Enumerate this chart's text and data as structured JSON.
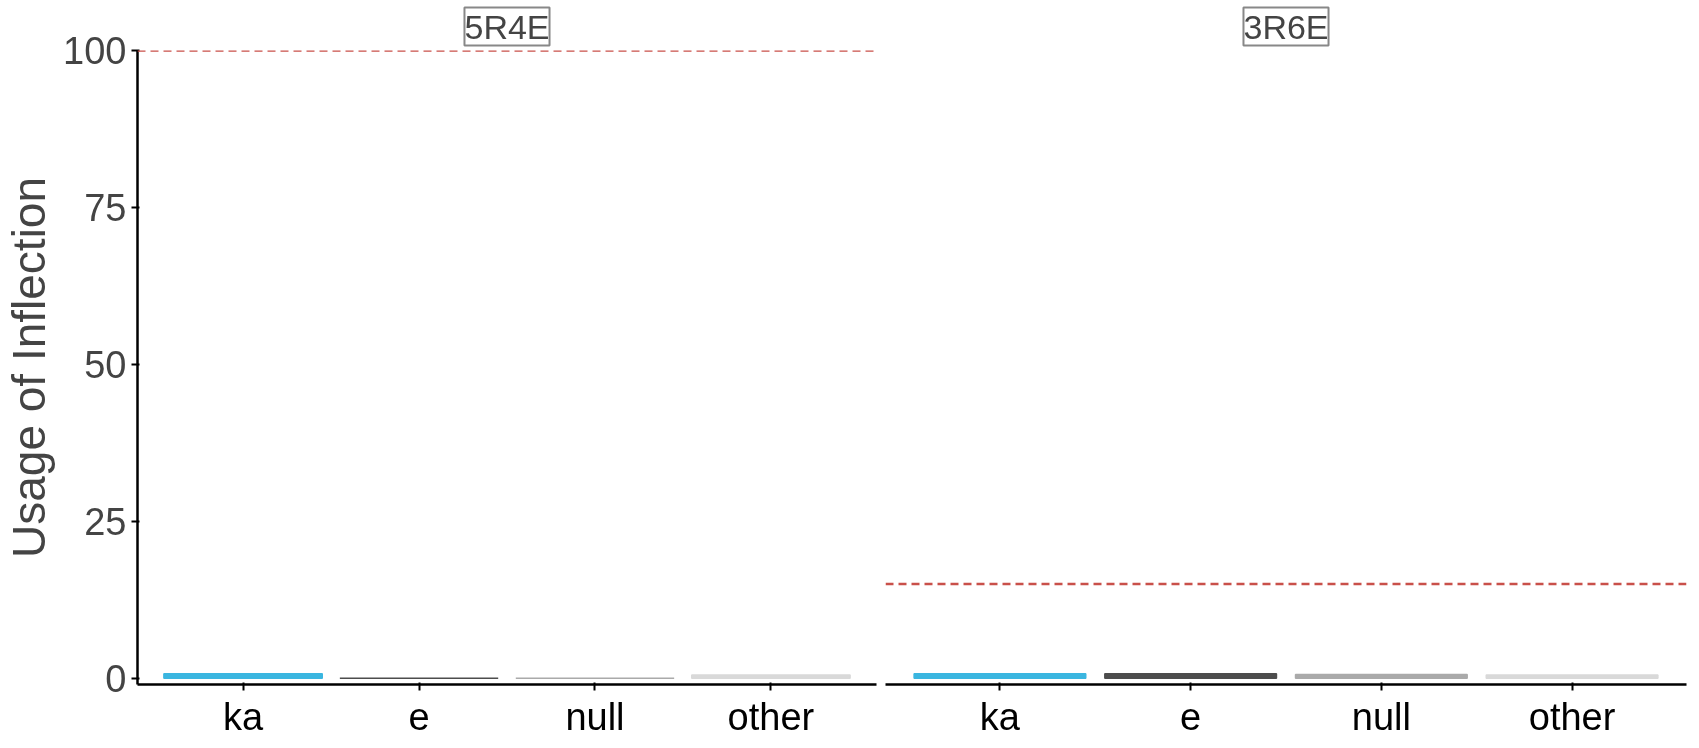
{
  "chart_data": [
    {
      "type": "bar",
      "title": "5R4E",
      "ylabel": "Usage of Inflection",
      "categories": [
        "ka",
        "e",
        "null",
        "other"
      ],
      "values": [
        0.7,
        0,
        0,
        0.5
      ],
      "colors": [
        "#3bb6e0",
        "#4d4d4d",
        "#aaaaaa",
        "#d9d9d9"
      ],
      "ylim": [
        -1,
        100
      ],
      "yticks": [
        0,
        25,
        50,
        75,
        100
      ],
      "grid": false,
      "ref_lines": [
        {
          "axis": "y",
          "value": 100,
          "color": "#c9504a",
          "line_style": "dashed"
        }
      ]
    },
    {
      "type": "bar",
      "title": "3R6E",
      "categories": [
        "ka",
        "e",
        "null",
        "other"
      ],
      "values": [
        0.7,
        0.7,
        0.6,
        0.5
      ],
      "colors": [
        "#3bb6e0",
        "#4d4d4d",
        "#aaaaaa",
        "#d9d9d9"
      ],
      "ylim": [
        -1,
        100
      ],
      "yticks": [
        0,
        25,
        50,
        75,
        100
      ],
      "grid": false,
      "tick_labels": "x",
      "ref_lines": [
        {
          "axis": "y",
          "value": 15,
          "color": "#c9504a",
          "line_style": "dashed"
        }
      ]
    }
  ]
}
